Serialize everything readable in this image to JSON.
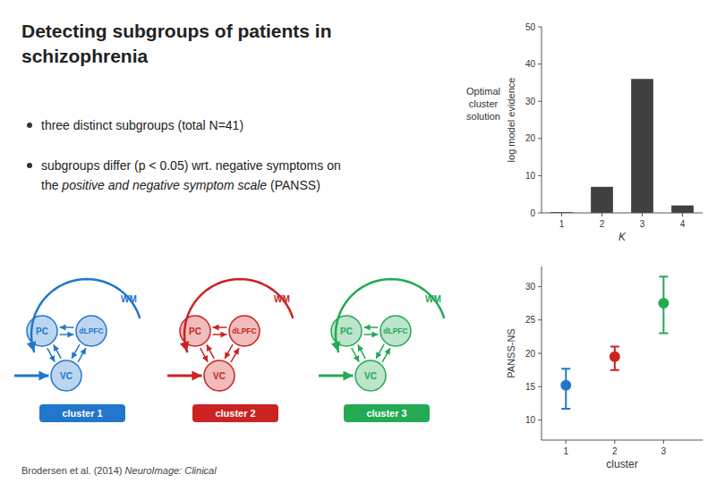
{
  "chart_data": [
    {
      "type": "bar",
      "categories": [
        "1",
        "2",
        "3",
        "4"
      ],
      "values": [
        0.2,
        7,
        36,
        2
      ],
      "color": "#404040",
      "x_label": "K",
      "y_label": "log model evidence",
      "ylim": [
        0,
        50
      ],
      "yticks": [
        0,
        10,
        20,
        30,
        40,
        50
      ],
      "annotations": [
        "Detecting subgroups of patients in",
        "schizophrenia",
        "three distinct subgroups (total N=41)",
        "subgroups differ (p < 0.05) wrt. negative symptoms on",
        "the ",
        "positive and negative symptom scale",
        " (PANSS)",
        "Optimal\ncluster\nsolution",
        "Brodersen et al. (2014) ",
        "NeuroImage: Clinical"
      ]
    },
    {
      "type": "scatter",
      "x": [
        1,
        2,
        3
      ],
      "values": [
        15.2,
        19.5,
        27.5
      ],
      "error_low": [
        3.5,
        2.0,
        4.5
      ],
      "error_high": [
        2.5,
        1.5,
        4.0
      ],
      "colors": [
        "#2277cc",
        "#cc2222",
        "#22aa55"
      ],
      "x_label": "cluster",
      "y_label": "PANSS-NS",
      "xlim": [
        0.5,
        3.8
      ],
      "xticks": [
        1,
        2,
        3
      ],
      "ylim": [
        7,
        33
      ],
      "yticks": [
        10,
        15,
        20,
        25,
        30
      ],
      "annotations": [
        "cluster 1",
        "cluster 2",
        "cluster 3",
        "PC",
        "dLPFC",
        "VC",
        "WM"
      ]
    }
  ]
}
